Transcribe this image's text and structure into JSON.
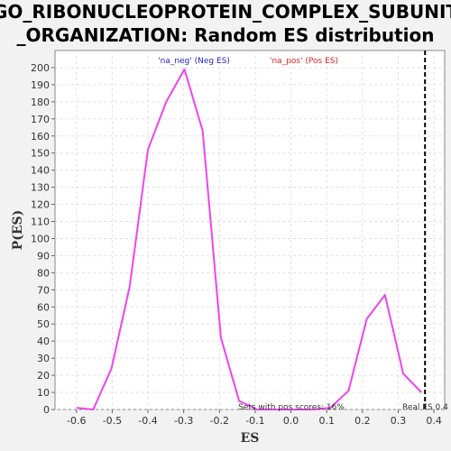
{
  "chart_data": {
    "type": "line",
    "title_line1": "GO_RIBONUCLEOPROTEIN_COMPLEX_SUBUNIT",
    "title_line2": "_ORGANIZATION: Random ES distribution",
    "xlabel": "ES",
    "ylabel": "P(ES)",
    "xlim": [
      -0.66,
      0.43
    ],
    "ylim": [
      0,
      210
    ],
    "x_ticks": [
      "-0.6",
      "-0.5",
      "-0.4",
      "-0.3",
      "-0.2",
      "-0.1",
      "0.0",
      "0.1",
      "0.2",
      "0.3",
      "0.4"
    ],
    "x_tick_values": [
      -0.6,
      -0.5,
      -0.4,
      -0.3,
      -0.2,
      -0.1,
      0.0,
      0.1,
      0.2,
      0.3,
      0.4
    ],
    "y_ticks": [
      0,
      10,
      20,
      30,
      40,
      50,
      60,
      70,
      80,
      90,
      100,
      110,
      120,
      130,
      140,
      150,
      160,
      170,
      180,
      190,
      200
    ],
    "grid": true,
    "legend": [
      {
        "label": "'na_neg' (Neg ES)",
        "color": "#2222cc"
      },
      {
        "label": "'na_pos' (Pos ES)",
        "color": "#dd2222"
      }
    ],
    "series": [
      {
        "color": "#ee44ee",
        "x": [
          -0.6,
          -0.553,
          -0.502,
          -0.451,
          -0.4,
          -0.349,
          -0.298,
          -0.247,
          -0.196,
          -0.145,
          -0.094,
          -0.043,
          0.008,
          0.059,
          0.11,
          0.161,
          0.212,
          0.263,
          0.314,
          0.365
        ],
        "y": [
          1,
          0,
          24,
          72,
          152,
          180,
          199,
          163,
          42,
          5,
          0,
          0,
          0,
          0,
          1,
          11,
          53,
          67,
          21,
          10
        ]
      }
    ],
    "real_es": 0.375,
    "annotations": {
      "sets_pos": "Sets with pos scores: 16%",
      "real_es": "Real ES 0.4"
    }
  }
}
